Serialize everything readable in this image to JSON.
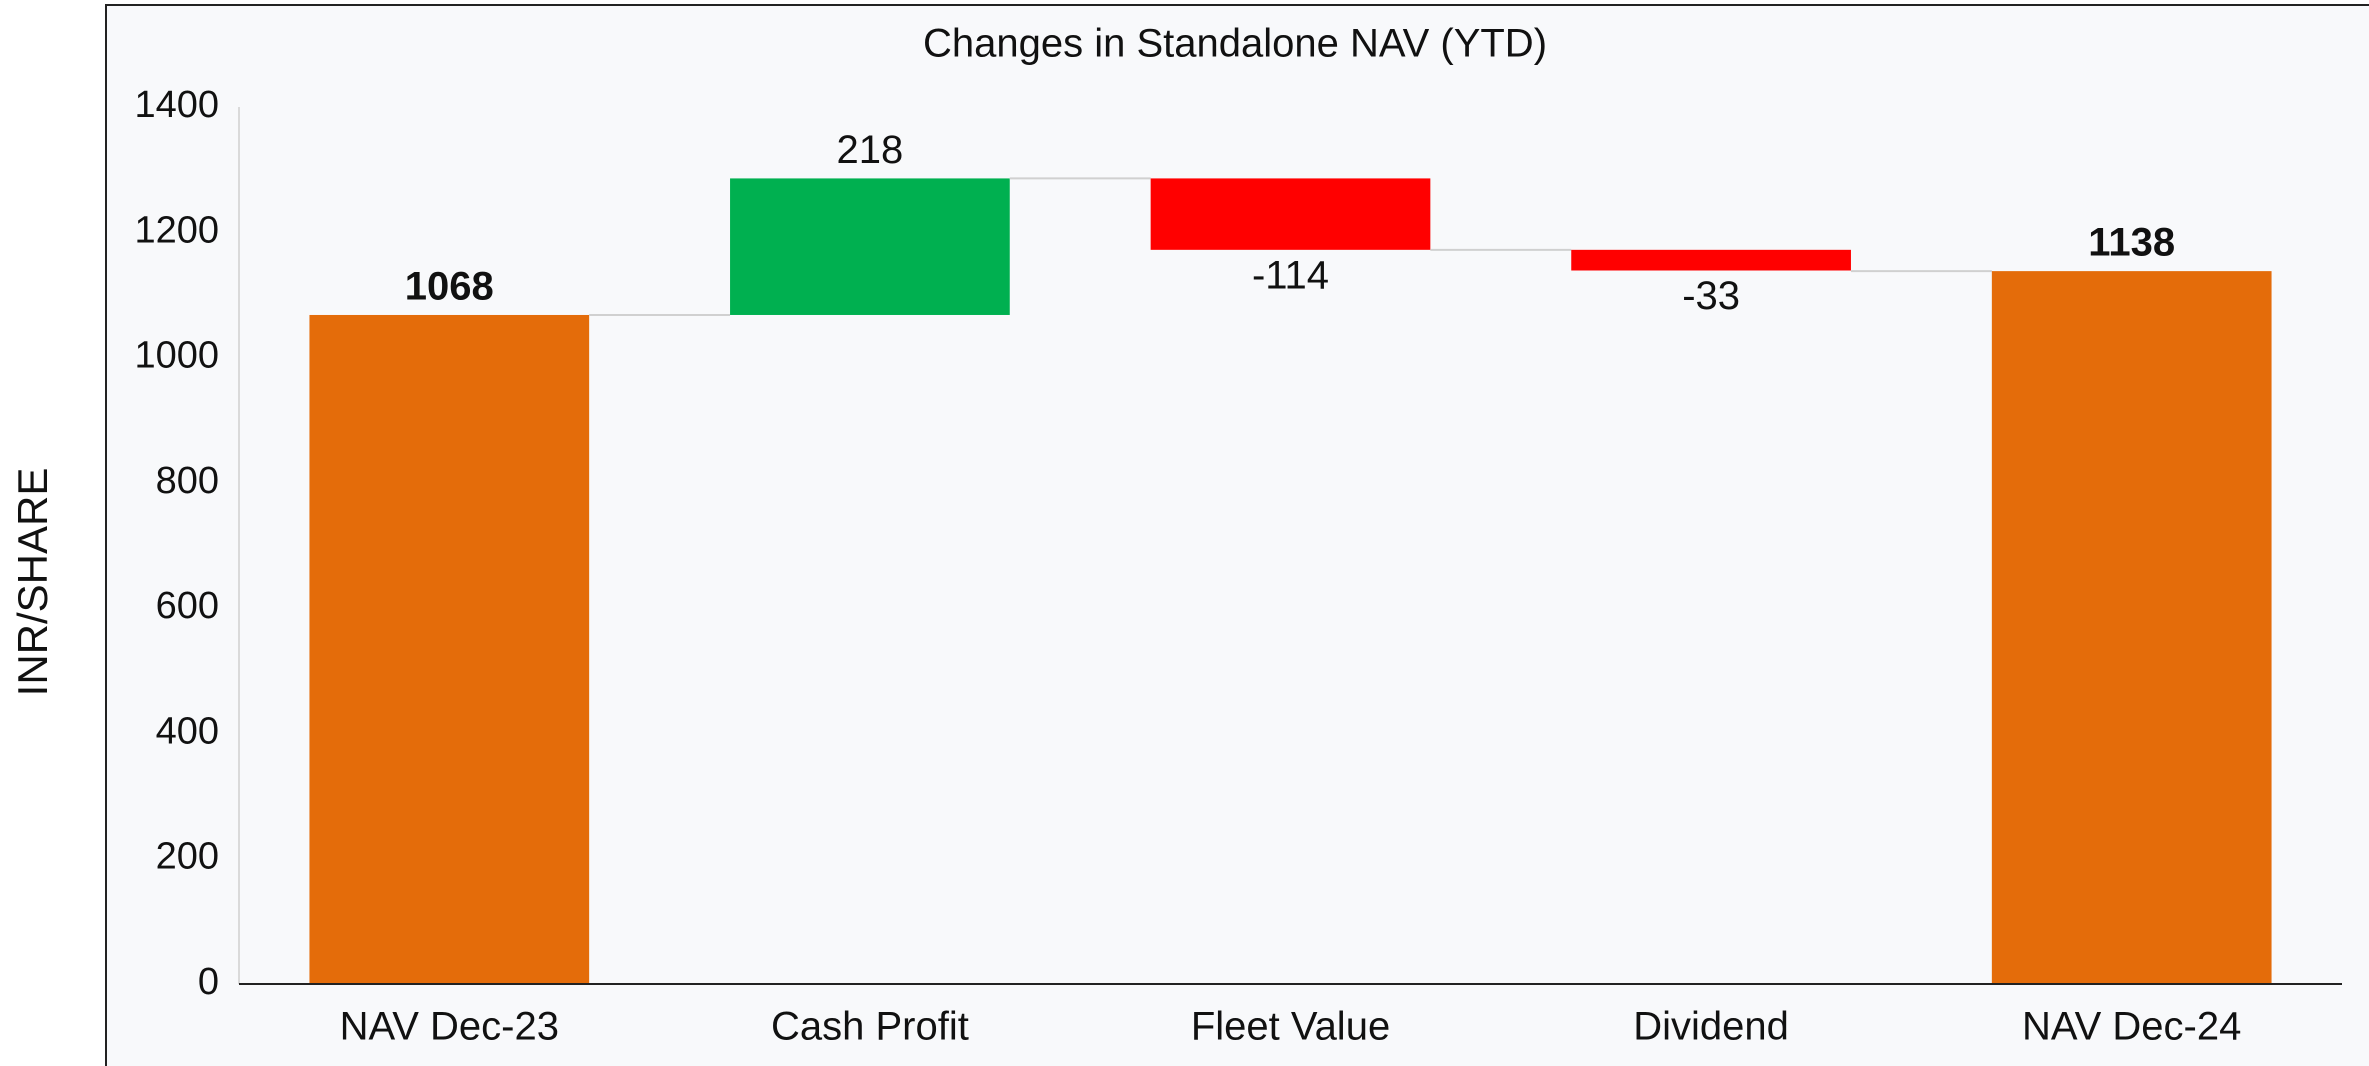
{
  "chart_data": {
    "type": "waterfall",
    "title": "Changes in Standalone NAV (YTD)",
    "y_label": "INR/SHARE",
    "categories": [
      "NAV Dec-23",
      "Cash Profit",
      "Fleet Value",
      "Dividend",
      "NAV Dec-24"
    ],
    "values": [
      1068,
      218,
      -114,
      -33,
      1138
    ],
    "measure": [
      "total",
      "relative",
      "relative",
      "relative",
      "total"
    ],
    "colors": [
      "#e46c0a",
      "#00b050",
      "#ff0000",
      "#ff0000",
      "#e46c0a"
    ],
    "ylim": [
      0,
      1400
    ],
    "yticks": [
      0,
      200,
      400,
      600,
      800,
      1000,
      1200,
      1400
    ],
    "grid": false
  }
}
